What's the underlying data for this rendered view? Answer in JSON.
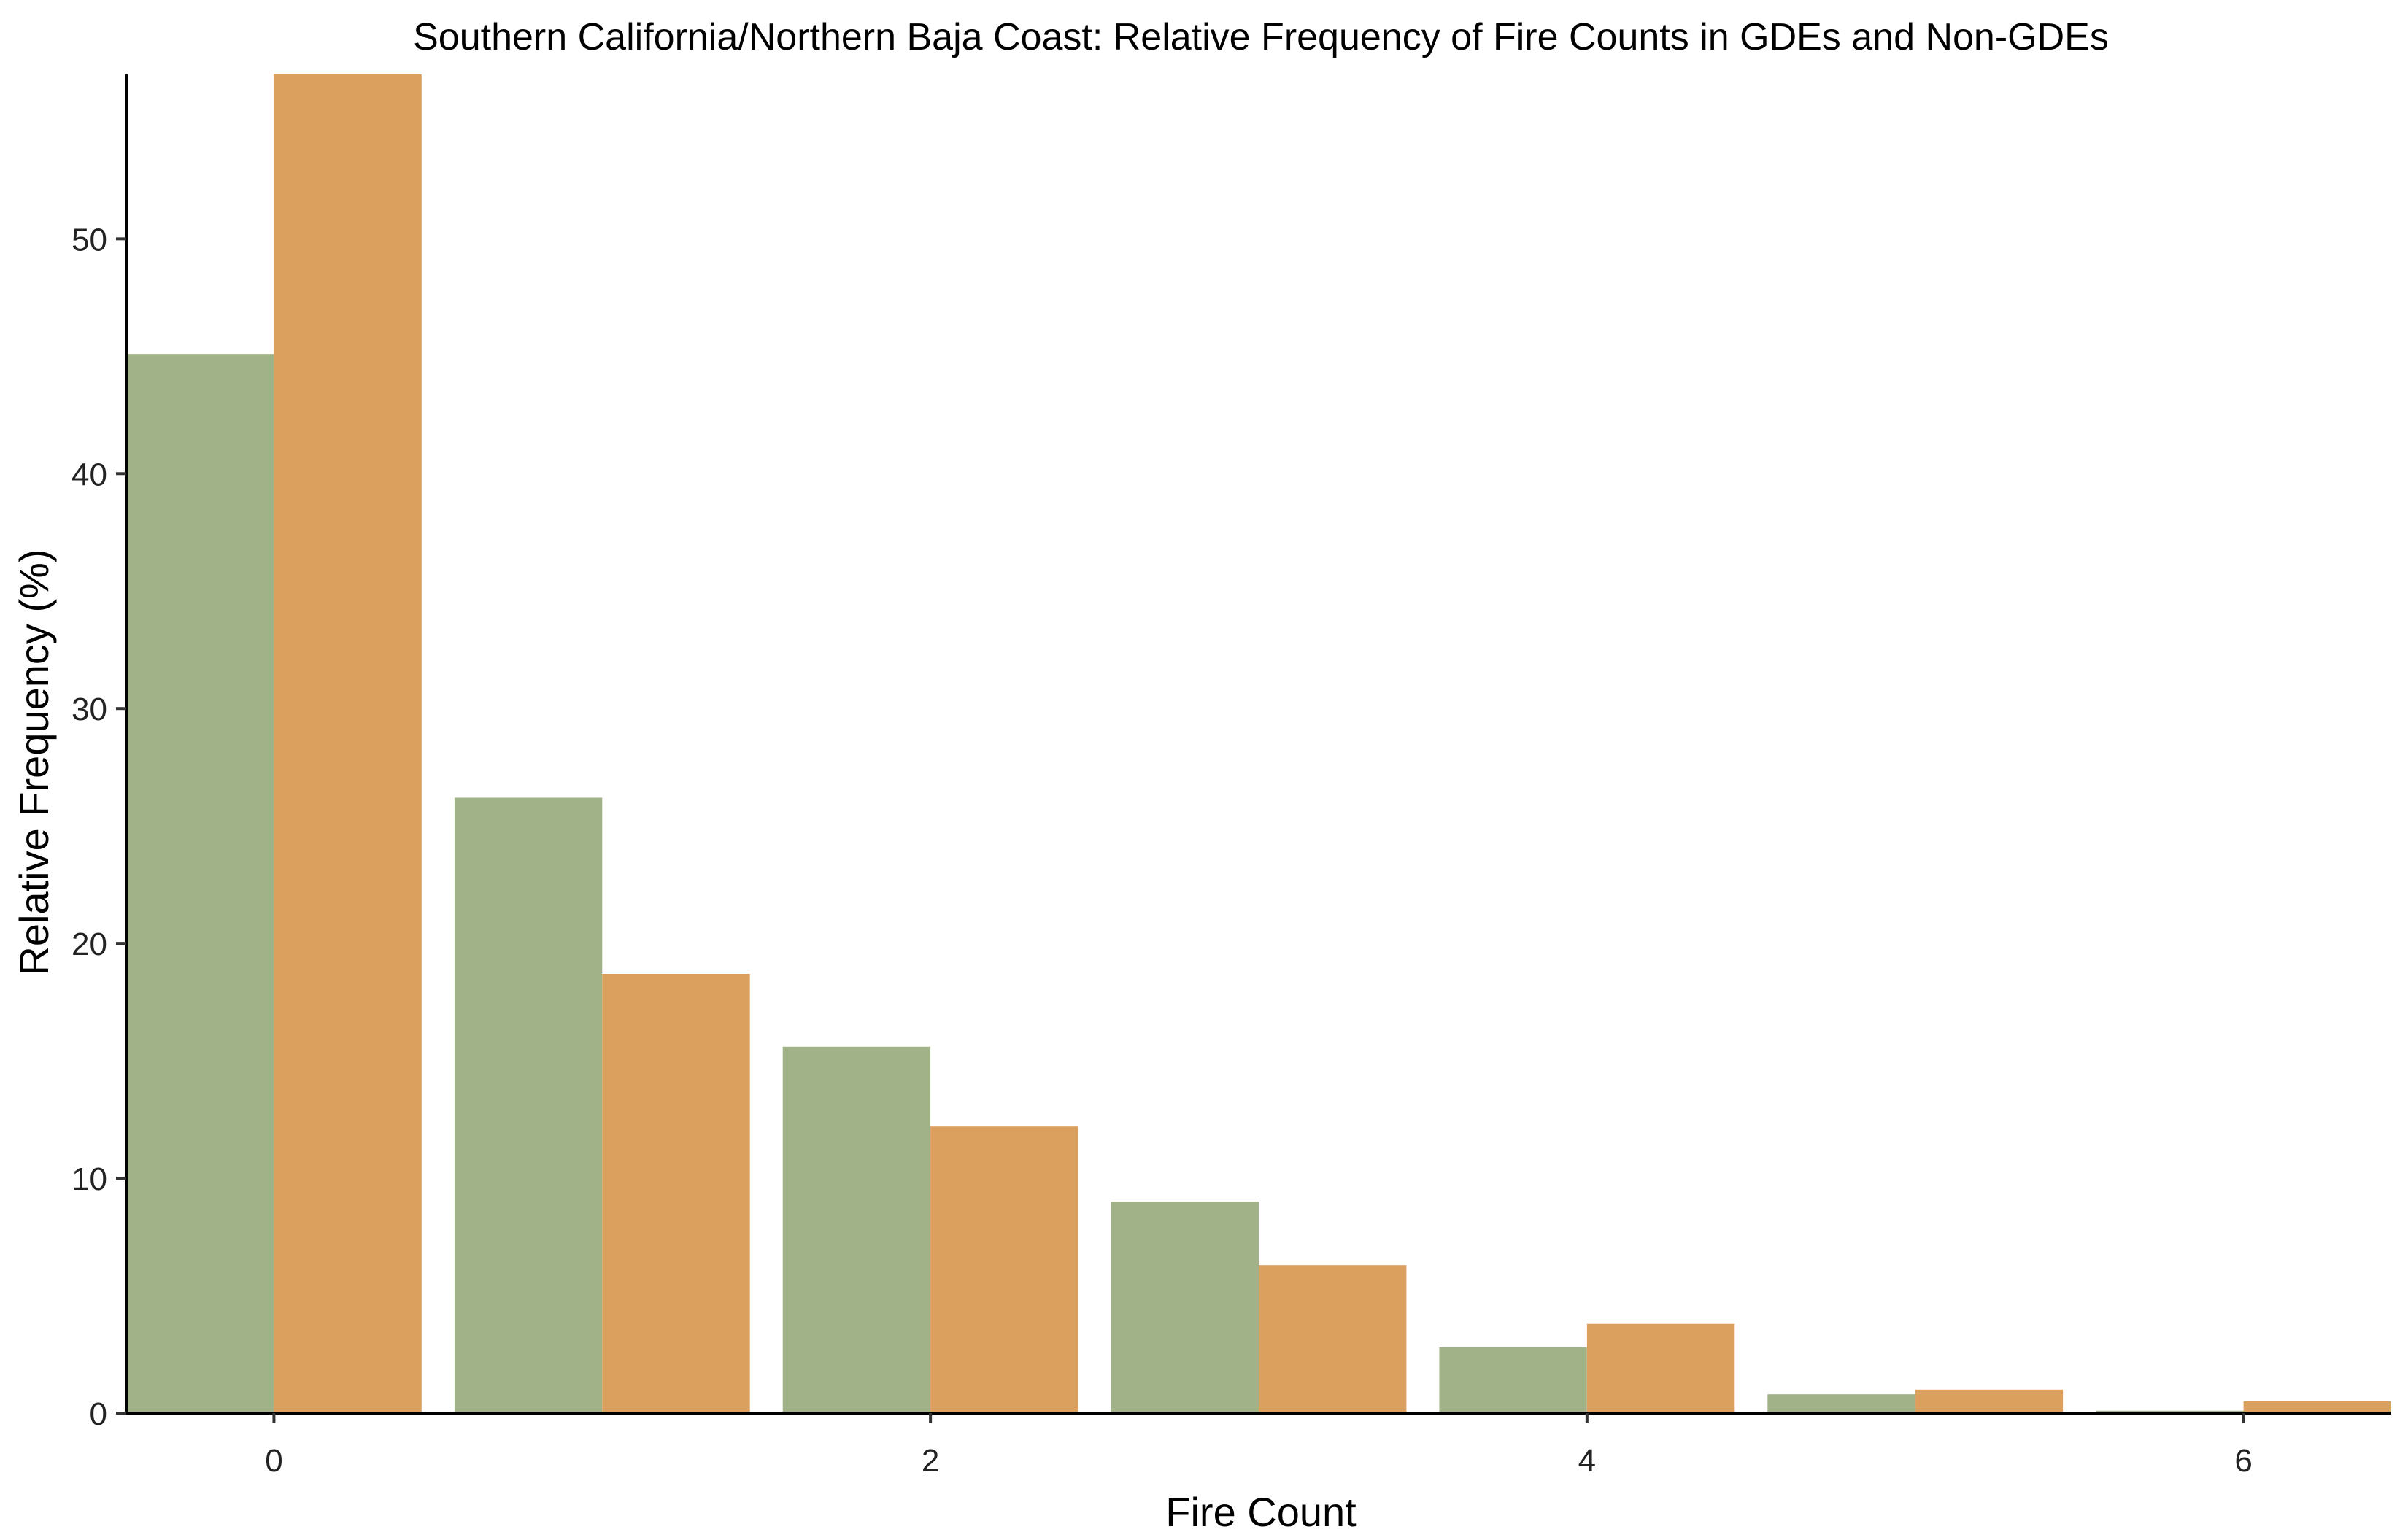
{
  "chart_data": {
    "type": "bar",
    "title": "Southern California/Northern Baja Coast: Relative Frequency of Fire Counts in GDEs and Non-GDEs",
    "xlabel": "Fire Count",
    "ylabel": "Relative Frequency (%)",
    "categories": [
      0,
      1,
      2,
      3,
      4,
      5,
      6
    ],
    "x_ticks": [
      0,
      2,
      4,
      6
    ],
    "y_ticks": [
      0,
      10,
      20,
      30,
      40,
      50
    ],
    "xlim": [
      -0.45,
      6.45
    ],
    "ylim": [
      0,
      57
    ],
    "grid": false,
    "legend": "none",
    "series": [
      {
        "name": "GDE",
        "color": "#a2b288",
        "values": [
          45.1,
          26.2,
          15.6,
          9.0,
          2.8,
          0.8,
          0.1
        ]
      },
      {
        "name": "Non-GDE",
        "color": "#dca05e",
        "values": [
          57.0,
          18.7,
          12.2,
          6.3,
          3.8,
          1.0,
          0.5
        ]
      }
    ]
  }
}
